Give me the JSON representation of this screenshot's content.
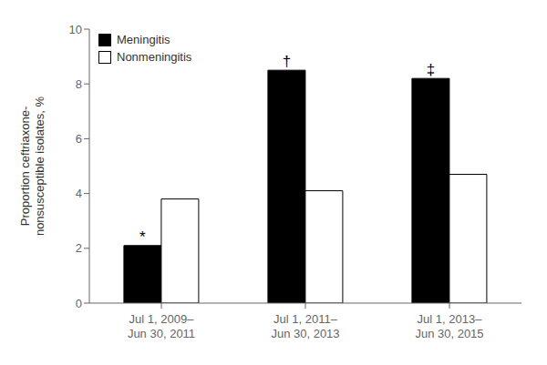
{
  "chart_data": {
    "type": "bar",
    "categories": [
      "Jul 1, 2009–\nJun 30, 2011",
      "Jul 1, 2011–\nJun 30, 2013",
      "Jul 1, 2013–\nJun 30, 2015"
    ],
    "series": [
      {
        "name": "Meningitis",
        "color": "#000000",
        "values": [
          2.1,
          8.5,
          8.2
        ]
      },
      {
        "name": "Nonmeningitis",
        "color": "#ffffff",
        "values": [
          3.8,
          4.1,
          4.7
        ]
      }
    ],
    "y_label": "Proportion ceftriaxone-\nnonsusceptible isolates, %",
    "ylim": [
      0,
      10
    ],
    "yticks": [
      0,
      2,
      4,
      6,
      8,
      10
    ],
    "legend": "upper left",
    "grid": false,
    "annotations": [
      {
        "text": "*",
        "series": "Meningitis",
        "category_index": 0
      },
      {
        "text": "†",
        "series": "Meningitis",
        "category_index": 1
      },
      {
        "text": "‡",
        "series": "Meningitis",
        "category_index": 2
      }
    ]
  }
}
